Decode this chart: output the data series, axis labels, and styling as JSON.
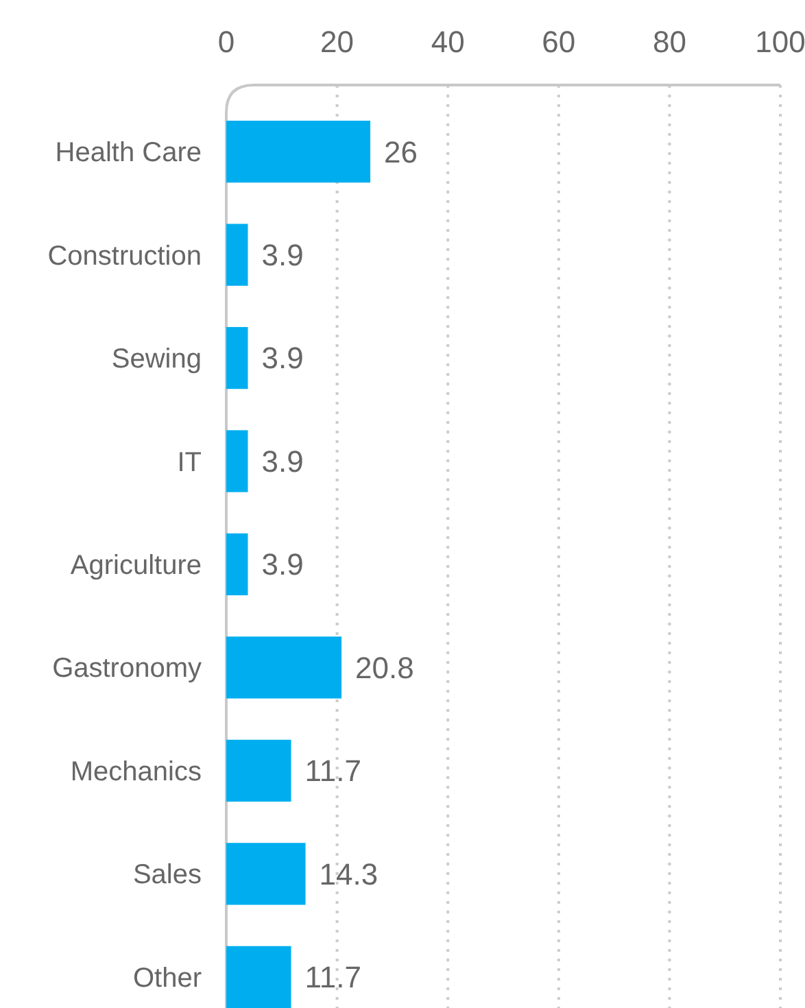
{
  "chart_data": {
    "type": "bar",
    "orientation": "horizontal",
    "categories": [
      "Health Care",
      "Construction",
      "Sewing",
      "IT",
      "Agriculture",
      "Gastronomy",
      "Mechanics",
      "Sales",
      "Other"
    ],
    "values": [
      26,
      3.9,
      3.9,
      3.9,
      3.9,
      20.8,
      11.7,
      14.3,
      11.7
    ],
    "color": "#00aeef",
    "xlim": [
      0,
      100
    ],
    "xticks": [
      0,
      20,
      40,
      60,
      80,
      100
    ],
    "grid": "x",
    "data_labels": true
  }
}
